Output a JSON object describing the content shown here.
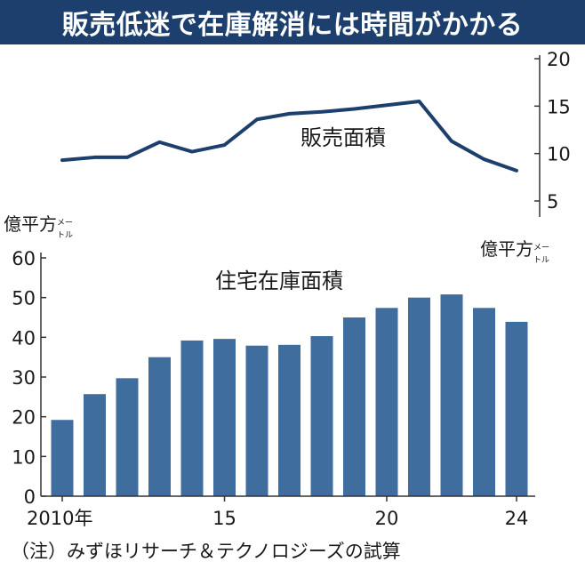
{
  "header": {
    "title": "販売低迷で在庫解消には時間がかかる"
  },
  "colors": {
    "header_bg": "#1d3f6e",
    "line": "#1d3f6e",
    "bar": "#3f6e9e",
    "axis": "#333333"
  },
  "chart_data": [
    {
      "type": "line",
      "label": "販売面積",
      "unit": "億平方㍍",
      "x": [
        2010,
        2011,
        2012,
        2013,
        2014,
        2015,
        2016,
        2017,
        2018,
        2019,
        2020,
        2021,
        2022,
        2023,
        2024
      ],
      "values": [
        9.3,
        9.6,
        9.6,
        11.2,
        10.2,
        10.9,
        13.6,
        14.2,
        14.4,
        14.7,
        15.1,
        15.5,
        11.3,
        9.4,
        8.2
      ],
      "ylim": [
        5,
        20
      ],
      "yticks": [
        5,
        10,
        15,
        20
      ],
      "axis_side": "right",
      "grid": false
    },
    {
      "type": "bar",
      "label": "住宅在庫面積",
      "unit": "億平方㍍",
      "x": [
        2010,
        2011,
        2012,
        2013,
        2014,
        2015,
        2016,
        2017,
        2018,
        2019,
        2020,
        2021,
        2022,
        2023,
        2024
      ],
      "values": [
        19.2,
        25.7,
        29.7,
        35.0,
        39.2,
        39.6,
        37.9,
        38.1,
        40.3,
        45.0,
        47.4,
        50.0,
        50.8,
        47.4,
        43.9
      ],
      "ylim": [
        0,
        60
      ],
      "yticks": [
        0,
        10,
        20,
        30,
        40,
        50,
        60
      ],
      "axis_side": "left",
      "grid": false
    }
  ],
  "x_ticks": [
    {
      "label": "2010年",
      "year": 2010
    },
    {
      "label": "15",
      "year": 2015
    },
    {
      "label": "20",
      "year": 2020
    },
    {
      "label": "24",
      "year": 2024
    }
  ],
  "units": {
    "main": "億平方",
    "suffix_top": "メー",
    "suffix_bottom": "トル"
  },
  "note": "（注）みずほリサーチ＆テクノロジーズの試算"
}
